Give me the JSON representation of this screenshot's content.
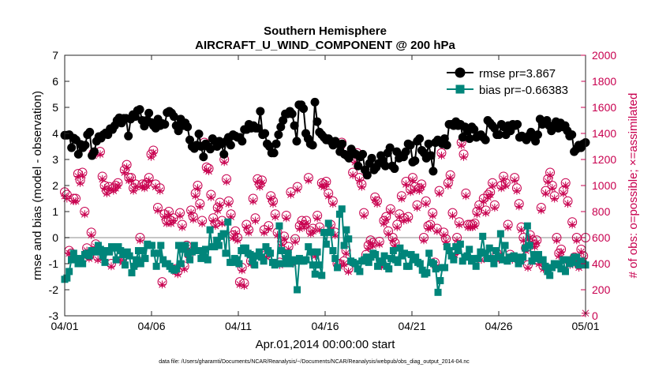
{
  "chart_data": {
    "type": "line",
    "title": "Southern Hemisphere",
    "subtitle": "AIRCRAFT_U_WIND_COMPONENT @ 200 hPa",
    "xlabel": "Apr.01,2014 00:00:00 start",
    "ylabel_left": "rmse and bias (model - observation)",
    "ylabel_right": "# of obs: o=possible; ×=assimilated",
    "footer": "data file: /Users/gharamti/Documents/NCAR/Reanalysis/~/Documents/NCAR/Reanalysis/webpub/obs_diag_output_2014-04.nc",
    "xlim": [
      0,
      30
    ],
    "ylim_left": [
      -3,
      7
    ],
    "ylim_right": [
      0,
      2000
    ],
    "x_ticks": [
      0,
      5,
      10,
      15,
      20,
      25,
      30
    ],
    "x_tick_labels": [
      "04/01",
      "04/06",
      "04/11",
      "04/16",
      "04/21",
      "04/26",
      "05/01"
    ],
    "y_ticks_left": [
      -3,
      -2,
      -1,
      0,
      1,
      2,
      3,
      4,
      5,
      6,
      7
    ],
    "y_tick_labels_left": [
      "-3",
      "-2",
      "-1",
      "0",
      "1",
      "2",
      "3",
      "4",
      "5",
      "6",
      "7"
    ],
    "y_ticks_right": [
      0,
      200,
      400,
      600,
      800,
      1000,
      1200,
      1400,
      1600,
      1800,
      2000
    ],
    "y_tick_labels_right": [
      "0",
      "200",
      "400",
      "600",
      "800",
      "1000",
      "1200",
      "1400",
      "1600",
      "1800",
      "2000"
    ],
    "legend_position": "top-right",
    "series": [
      {
        "name": "rmse pr=3.867",
        "axis": "left",
        "marker": "circle",
        "color": "#000000",
        "values": [
          3.93,
          3.93,
          3.95,
          3.45,
          3.82,
          3.75,
          3.2,
          3.58,
          3.45,
          3.55,
          3.95,
          4.05,
          3.15,
          3.3,
          3.7,
          3.88,
          3.82,
          3.95,
          4.02,
          3.95,
          4.18,
          4.15,
          4.3,
          4.5,
          4.6,
          4.4,
          4.58,
          4.58,
          3.9,
          4.55,
          4.72,
          4.65,
          4.88,
          4.92,
          4.5,
          4.28,
          4.5,
          4.78,
          4.42,
          4.3,
          4.2,
          4.55,
          4.3,
          4.38,
          4.35,
          4.8,
          4.85,
          4.78,
          4.65,
          4.3,
          4.1,
          4.55,
          4.3,
          4.4,
          4.25,
          3.75,
          3.5,
          3.42,
          3.55,
          3.98,
          3.5,
          3.1,
          3.6,
          3.5,
          3.4,
          3.8,
          3.7,
          3.5,
          3.7,
          3.6,
          3.2,
          3.7,
          3.85,
          3.55,
          3.95,
          3.9,
          3.85,
          3.85,
          3.7,
          4.15,
          4.15,
          4.35,
          4.2,
          4.3,
          4.2,
          4.2,
          4.85,
          3.95,
          4.0,
          3.6,
          3.5,
          3.25,
          3.25,
          3.6,
          3.95,
          4.25,
          4.5,
          4.75,
          4.75,
          4.85,
          4.75,
          4.3,
          3.7,
          5.1,
          5.1,
          4.95,
          4.0,
          3.8,
          3.6,
          3.55,
          5.2,
          4.45,
          4.05,
          3.95,
          3.85,
          3.75,
          3.8,
          3.7,
          3.55,
          3.7,
          3.6,
          3.3,
          3.6,
          3.2,
          3.15,
          3.05,
          3.4,
          3.25,
          3.2,
          2.75,
          3.1,
          3.2,
          2.6,
          2.4,
          2.85,
          3.05,
          2.6,
          2.7,
          2.85,
          3.15,
          2.95,
          2.75,
          3.25,
          3.45,
          2.75,
          2.65,
          3.3,
          3.05,
          3.15,
          3.1,
          3.3,
          3.6,
          3.55,
          2.9,
          2.95,
          3.7,
          3.8,
          3.35,
          3.25,
          3.05,
          3.6,
          3.15,
          2.55,
          3.65,
          3.75,
          3.7,
          3.6,
          3.8,
          3.55,
          4.35,
          4.35,
          4.3,
          4.45,
          4.3,
          4.35,
          3.85,
          4.25,
          4.1,
          3.8,
          4.25,
          4.15,
          3.85,
          3.9,
          3.95,
          3.85,
          3.75,
          4.5,
          4.4,
          4.3,
          4.2,
          3.95,
          3.95,
          4.35,
          4.25,
          3.95,
          4.3,
          4.1,
          4.35,
          4.3,
          4.35,
          3.85,
          3.9,
          3.85,
          3.75,
          3.9,
          4.05,
          3.85,
          3.7,
          3.95,
          4.55,
          4.35,
          4.4,
          4.5,
          4.3,
          4.1,
          4.3,
          4.45,
          4.2,
          4.4,
          4.25,
          4.3,
          4.1,
          3.9,
          3.95,
          3.3,
          3.4,
          3.55,
          3.45,
          3.6,
          3.65
        ]
      },
      {
        "name": "bias pr=-0.66383",
        "axis": "left",
        "marker": "square",
        "color": "#00857a",
        "values": [
          -1.6,
          -1.55,
          -1.3,
          -0.85,
          -0.6,
          -0.85,
          -1.0,
          -0.8,
          -1.0,
          -0.65,
          -0.6,
          -0.7,
          -0.5,
          -0.5,
          -0.55,
          -0.3,
          -0.45,
          -0.7,
          -0.95,
          -0.5,
          -0.55,
          -0.35,
          -0.4,
          -0.85,
          -0.35,
          -0.5,
          -0.65,
          -1.05,
          -0.55,
          -0.7,
          -1.35,
          -1.1,
          -0.85,
          -0.5,
          -1.0,
          -0.5,
          -0.8,
          -0.25,
          -0.3,
          -0.3,
          -0.6,
          -1.1,
          -0.6,
          -0.3,
          -0.85,
          -1.0,
          -1.0,
          -1.1,
          -1.2,
          -1.25,
          -1.2,
          -0.3,
          -1.0,
          -0.45,
          -0.3,
          -0.6,
          -0.85,
          -0.55,
          -0.3,
          -0.5,
          -0.5,
          -0.8,
          -0.7,
          -0.45,
          -0.85,
          0.3,
          -0.35,
          -0.35,
          -0.1,
          -0.3,
          0.05,
          0.15,
          -0.6,
          0.6,
          -0.95,
          -0.95,
          -0.8,
          -0.85,
          -1.0,
          -0.5,
          -0.4,
          -0.4,
          -0.6,
          -0.65,
          -0.9,
          -1.05,
          -0.7,
          -0.55,
          -0.75,
          -0.9,
          -0.35,
          -0.5,
          -0.6,
          -0.95,
          -1.05,
          -1.0,
          0.45,
          -0.5,
          -1.0,
          -0.8,
          -0.6,
          -1.0,
          -0.85,
          -0.9,
          -2.0,
          -0.8,
          -0.9,
          -0.9,
          -0.85,
          -0.35,
          -0.55,
          -1.05,
          -1.4,
          -0.55,
          -1.05,
          -1.45,
          0.2,
          -0.25,
          0.55,
          0.2,
          -0.5,
          -0.8,
          -1.15,
          0.9,
          1.1,
          -0.3,
          0.3,
          -0.05,
          -0.9,
          -0.95,
          -1.0,
          -1.2,
          -1.3,
          -0.9,
          -0.85,
          -0.75,
          -0.95,
          -0.75,
          -0.6,
          -0.65,
          -1.1,
          -0.9,
          -0.95,
          -0.7,
          -1.1,
          -1.2,
          -0.8,
          -0.5,
          -0.85,
          -0.95,
          -0.4,
          -0.7,
          -0.6,
          -1.1,
          -1.1,
          -0.65,
          -0.85,
          -0.75,
          -0.95,
          -1.0,
          -1.25,
          -1.4,
          -1.35,
          -0.6,
          -0.95,
          -1.0,
          -1.2,
          -2.1,
          -1.65,
          -1.15,
          -1.15,
          -0.35,
          -0.5,
          -0.7,
          -0.85,
          -0.35,
          -0.5,
          -0.25,
          -0.9,
          -0.75,
          -0.7,
          -0.45,
          -0.9,
          -0.8,
          -1.1,
          -0.8,
          -0.55,
          0.05,
          -0.6,
          -0.8,
          -0.4,
          -0.8,
          -1.0,
          -0.5,
          -0.75,
          0.15,
          -0.85,
          -0.3,
          -0.9,
          -0.75,
          -0.8,
          -0.7,
          -0.75,
          -1.0,
          -0.9,
          -0.75,
          -0.4,
          0.45,
          -0.3,
          -0.9,
          -0.65,
          -0.8,
          -0.65,
          -0.85,
          -0.85,
          -1.1,
          -1.3,
          -1.45,
          -1.15,
          -1.0,
          -1.0,
          -1.05,
          -1.2,
          -0.85,
          -1.3,
          -0.85,
          -1.0,
          -0.95,
          -0.75,
          -0.75,
          -1.05,
          -0.9,
          -1.0,
          -1.05
        ]
      },
      {
        "name": "# of obs possible",
        "axis": "right",
        "marker": "circle-open",
        "color": "#c8004f",
        "values": [
          950,
          930,
          500,
          480,
          900,
          900,
          1090,
          1040,
          1100,
          800,
          520,
          460,
          640,
          1250,
          550,
          450,
          1260,
          1070,
          1000,
          960,
          990,
          400,
          980,
          1000,
          1020,
          450,
          430,
          1120,
          1160,
          1060,
          1060,
          980,
          1010,
          420,
          600,
          1010,
          1000,
          1020,
          1060,
          1240,
          1270,
          1010,
          830,
          980,
          260,
          780,
          730,
          800,
          730,
          750,
          360,
          340,
          790,
          700,
          380,
          540,
          470,
          810,
          760,
          940,
          1000,
          860,
          730,
          1330,
          1140,
          1130,
          930,
          750,
          710,
          830,
          870,
          730,
          1200,
          1050,
          880,
          780,
          620,
          650,
          600,
          260,
          370,
          250,
          700,
          660,
          420,
          900,
          750,
          1050,
          1010,
          1040,
          660,
          470,
          690,
          920,
          880,
          780,
          640,
          410,
          570,
          610,
          770,
          530,
          950,
          420,
          590,
          990,
          690,
          730,
          700,
          730,
          1060,
          650,
          670,
          480,
          770,
          680,
          1020,
          1010,
          1030,
          940,
          700,
          880,
          640,
          400,
          400,
          1330,
          420,
          500,
          360,
          1240,
          1100,
          1200,
          1250,
          1060,
          1010,
          790,
          470,
          540,
          580,
          560,
          910,
          880,
          570,
          400,
          730,
          760,
          650,
          820,
          600,
          560,
          700,
          780,
          920,
          750,
          1030,
          760,
          970,
          1060,
          990,
          850,
          980,
          1010,
          600,
          880,
          690,
          700,
          790,
          410,
          670,
          960,
          1250,
          640,
          590,
          1020,
          1080,
          790,
          490,
          600,
          720,
          1330,
          1240,
          940,
          700,
          700,
          700,
          710,
          800,
          850,
          450,
          900,
          810,
          930,
          950,
          1020,
          850,
          480,
          450,
          1000,
          1070,
          1020,
          700,
          470,
          450,
          1060,
          980,
          860,
          680,
          600,
          520,
          390,
          620,
          580,
          550,
          580,
          420,
          830,
          380,
          960,
          1050,
          1100,
          1000,
          920,
          600,
          480,
          510,
          960,
          1020,
          880,
          410,
          720,
          450,
          600,
          390,
          510,
          460,
          600
        ]
      },
      {
        "name": "# of obs assimilated",
        "axis": "right",
        "marker": "cross",
        "color": "#c8004f",
        "values": [
          920,
          900,
          480,
          470,
          880,
          880,
          1070,
          1020,
          1080,
          780,
          500,
          440,
          620,
          1230,
          530,
          430,
          1240,
          1050,
          980,
          940,
          970,
          380,
          960,
          980,
          1000,
          430,
          410,
          1100,
          1140,
          1040,
          1040,
          960,
          990,
          400,
          580,
          990,
          980,
          1000,
          1040,
          1220,
          1250,
          990,
          810,
          960,
          240,
          760,
          710,
          780,
          710,
          730,
          340,
          320,
          770,
          680,
          360,
          520,
          450,
          790,
          740,
          920,
          980,
          840,
          710,
          1310,
          1120,
          1110,
          910,
          730,
          690,
          810,
          850,
          710,
          1180,
          1030,
          860,
          760,
          600,
          630,
          580,
          240,
          350,
          230,
          680,
          640,
          400,
          880,
          730,
          1030,
          990,
          1020,
          640,
          450,
          670,
          900,
          860,
          760,
          620,
          390,
          550,
          590,
          750,
          510,
          930,
          400,
          570,
          970,
          670,
          710,
          680,
          710,
          1040,
          630,
          650,
          460,
          750,
          660,
          1000,
          990,
          1010,
          920,
          680,
          860,
          620,
          380,
          380,
          1310,
          400,
          480,
          340,
          1220,
          1080,
          1180,
          1230,
          1040,
          990,
          770,
          450,
          520,
          560,
          540,
          890,
          860,
          550,
          380,
          710,
          740,
          630,
          800,
          580,
          540,
          680,
          760,
          900,
          730,
          1010,
          740,
          950,
          1040,
          970,
          830,
          960,
          990,
          580,
          860,
          670,
          680,
          770,
          390,
          650,
          940,
          1230,
          620,
          570,
          1000,
          1060,
          770,
          470,
          580,
          700,
          1310,
          1220,
          920,
          680,
          680,
          680,
          690,
          780,
          830,
          430,
          880,
          790,
          910,
          930,
          1000,
          830,
          460,
          430,
          980,
          1050,
          1000,
          680,
          450,
          430,
          1040,
          960,
          840,
          660,
          580,
          500,
          370,
          600,
          560,
          530,
          560,
          400,
          810,
          360,
          940,
          1030,
          1080,
          980,
          900,
          580,
          460,
          490,
          940,
          1000,
          860,
          390,
          700,
          430,
          580,
          370,
          490,
          440,
          20
        ]
      }
    ]
  },
  "colors": {
    "rmse": "#000000",
    "bias": "#00857a",
    "obs": "#c8004f",
    "zero_line": "#b4b4b4",
    "axis": "#262626"
  }
}
